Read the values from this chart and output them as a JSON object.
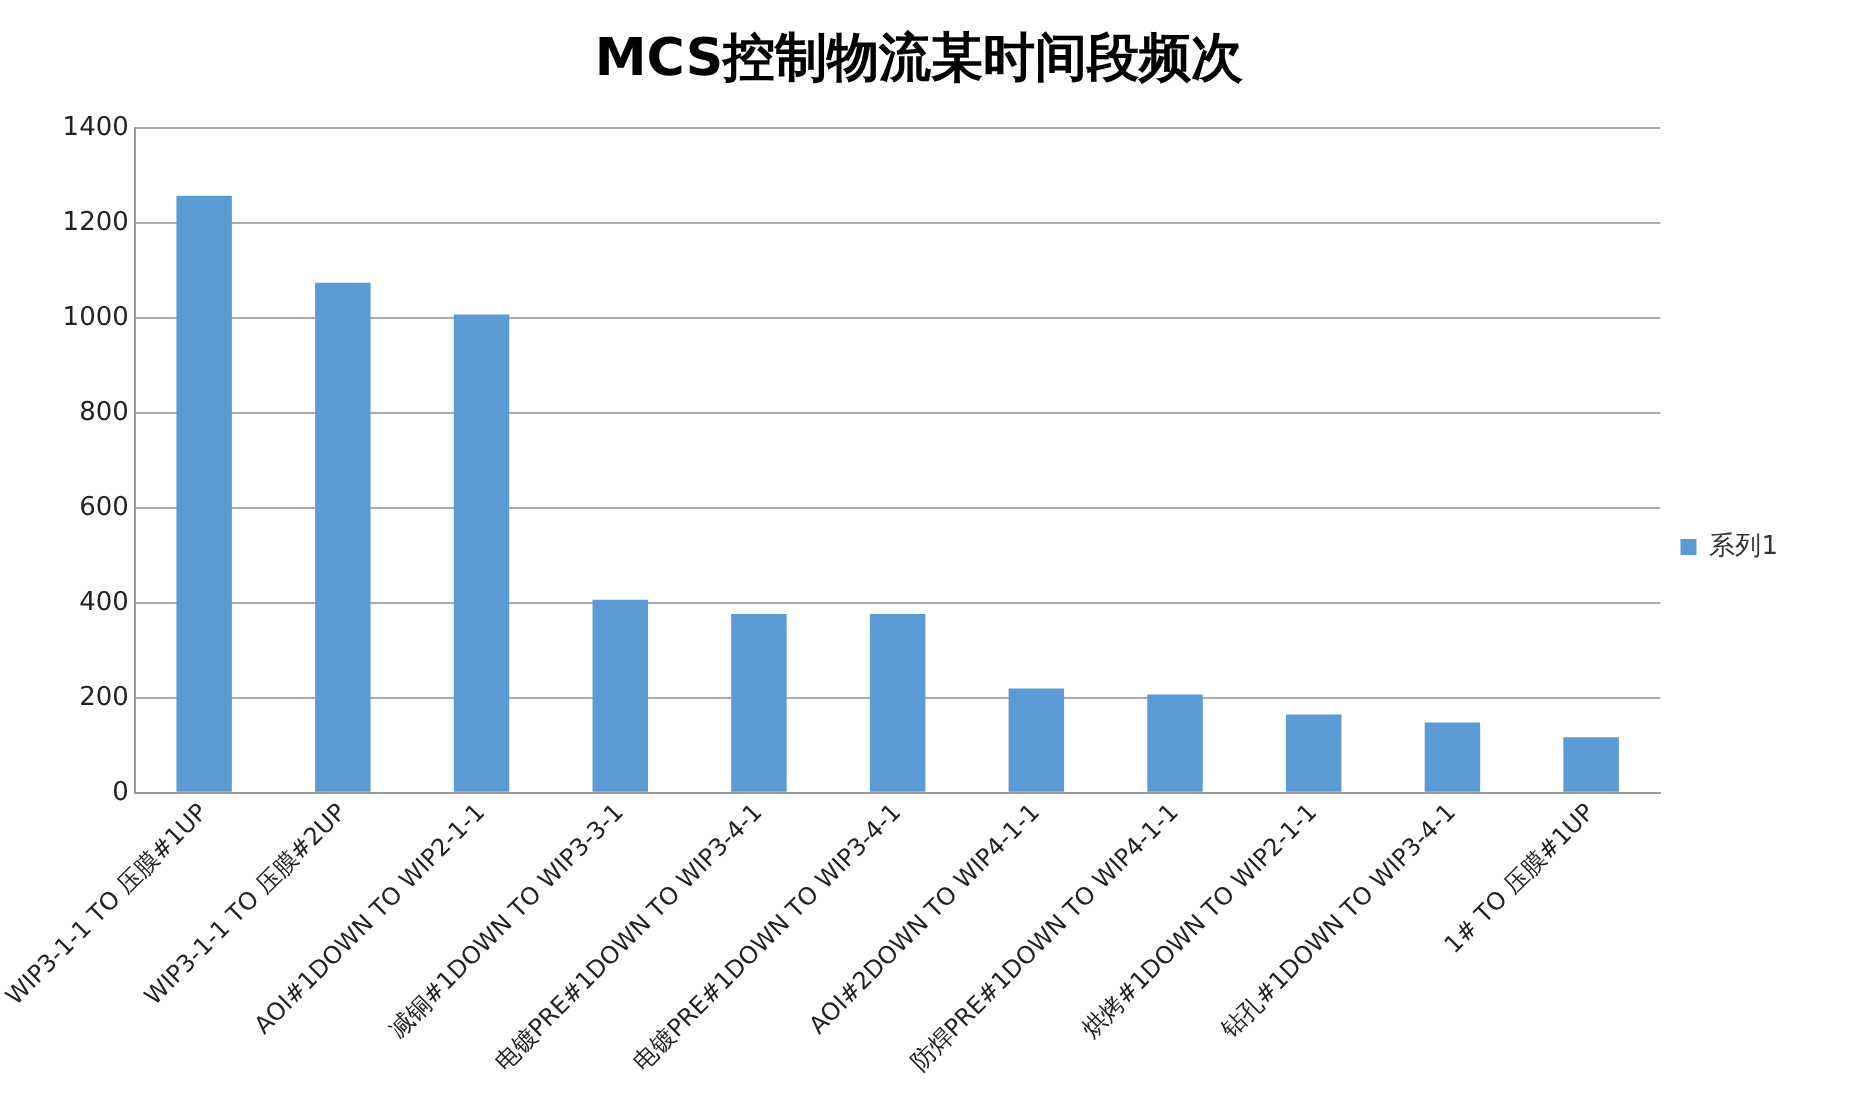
{
  "chart_data": {
    "type": "bar",
    "title": "MCS控制物流某时间段频次",
    "categories": [
      "WIP3-1-1 TO 压膜#1UP",
      "WIP3-1-1 TO 压膜#2UP",
      "AOI#1DOWN TO WIP2-1-1",
      "减铜#1DOWN TO WIP3-3-1",
      "电镀PRE#1DOWN TO WIP3-4-1",
      "电镀PRE#1DOWN TO WIP3-4-1",
      "AOI#2DOWN TO WIP4-1-1",
      "防焊PRE#1DOWN TO WIP4-1-1",
      "烘烤#1DOWN TO WIP2-1-1",
      "钻孔#1DOWN TO WIP3-4-1",
      "1# TO 压膜#1UP"
    ],
    "series": [
      {
        "name": "系列1",
        "color": "#5b9bd5",
        "values": [
          1258,
          1075,
          1008,
          407,
          377,
          377,
          220,
          207,
          165,
          148,
          117
        ]
      }
    ],
    "ylim": [
      0,
      1400
    ],
    "yticks": [
      0,
      200,
      400,
      600,
      800,
      1000,
      1200,
      1400
    ],
    "grid": "y",
    "legend": "right"
  }
}
